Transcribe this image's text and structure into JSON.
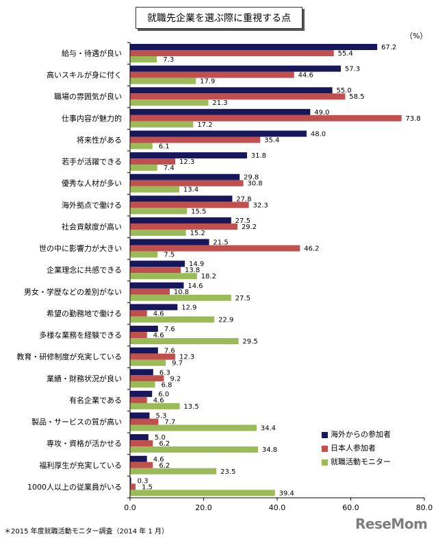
{
  "chart_data": {
    "type": "bar",
    "orientation": "horizontal",
    "title": "就職先企業を選ぶ際に重視する点",
    "unit": "（%）",
    "xlim": [
      0,
      80
    ],
    "x_ticks": [
      "0.0",
      "20.0",
      "40.0",
      "60.0",
      "80.0"
    ],
    "grid": false,
    "legend_position": "bottom-right",
    "categories": [
      "給与・待遇が良い",
      "高いスキルが身に付く",
      "職場の雰囲気が良い",
      "仕事内容が魅力的",
      "将来性がある",
      "若手が活躍できる",
      "優秀な人材が多い",
      "海外拠点で働ける",
      "社会貢献度が高い",
      "世の中に影響力が大きい",
      "企業理念に共感できる",
      "男女・学歴などの差別がない",
      "希望の勤務地で働ける",
      "多様な業務を経験できる",
      "教育・研修制度が充実している",
      "業績・財務状況が良い",
      "有名企業である",
      "製品・サービスの質が高い",
      "専攻・資格が活かせる",
      "福利厚生が充実している",
      "1000人以上の従業員がいる"
    ],
    "series": [
      {
        "name": "海外からの参加者",
        "color": "#17175c",
        "values": [
          67.2,
          57.3,
          55.0,
          49.0,
          48.0,
          31.8,
          29.8,
          27.8,
          27.5,
          21.5,
          14.9,
          14.6,
          12.9,
          7.6,
          7.6,
          6.3,
          6.0,
          5.3,
          5.0,
          4.6,
          0.3
        ]
      },
      {
        "name": "日本人参加者",
        "color": "#c0504d",
        "values": [
          55.4,
          44.6,
          58.5,
          73.8,
          35.4,
          12.3,
          30.8,
          32.3,
          29.2,
          46.2,
          13.8,
          10.8,
          4.6,
          4.6,
          12.3,
          9.2,
          4.6,
          7.7,
          6.2,
          6.2,
          1.5
        ]
      },
      {
        "name": "就職活動モニター",
        "color": "#9bbb59",
        "values": [
          7.3,
          17.9,
          21.3,
          17.2,
          6.1,
          7.4,
          13.4,
          15.5,
          15.2,
          7.5,
          18.2,
          27.5,
          22.9,
          29.5,
          9.7,
          6.8,
          13.5,
          34.4,
          34.8,
          23.5,
          39.4
        ]
      }
    ]
  },
  "footnote": "＊2015 年度就職活動モニター調査（2014 年 1 月）",
  "logo_text": "ReseMom"
}
